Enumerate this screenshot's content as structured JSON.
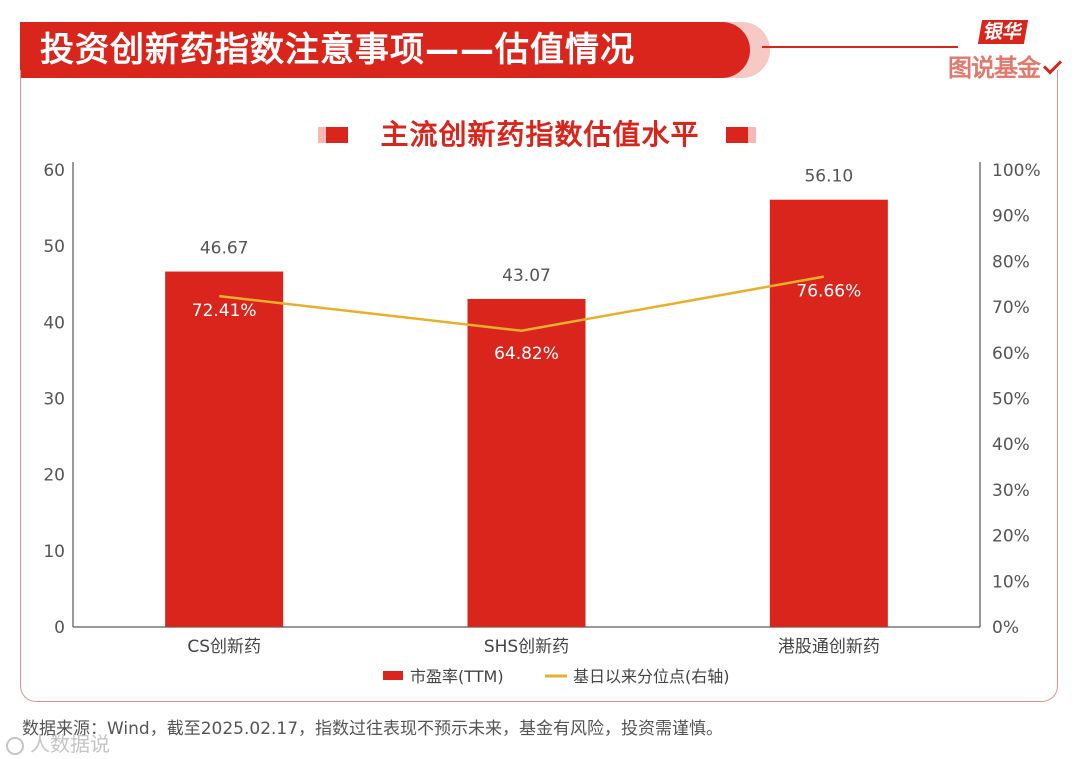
{
  "header": {
    "title": "投资创新药指数注意事项——估值情况",
    "logo_top": "银华",
    "logo_bottom": "图说基金"
  },
  "colors": {
    "brand": "#d9251c",
    "line": "#e8b02a"
  },
  "chart_data": {
    "type": "bar",
    "title": "主流创新药指数估值水平",
    "categories": [
      "CS创新药",
      "SHS创新药",
      "港股通创新药"
    ],
    "series": [
      {
        "name": "市盈率(TTM)",
        "type": "bar",
        "axis": "left",
        "values": [
          46.67,
          43.07,
          56.1
        ],
        "labels": [
          "46.67",
          "43.07",
          "56.10"
        ]
      },
      {
        "name": "基日以来分位点(右轴)",
        "type": "line",
        "axis": "right",
        "values": [
          72.41,
          64.82,
          76.66
        ],
        "labels": [
          "72.41%",
          "64.82%",
          "76.66%"
        ]
      }
    ],
    "y_left": {
      "min": 0,
      "max": 60,
      "ticks": [
        "0",
        "10",
        "20",
        "30",
        "40",
        "50",
        "60"
      ]
    },
    "y_right": {
      "min": 0,
      "max": 100,
      "ticks": [
        "0%",
        "10%",
        "20%",
        "30%",
        "40%",
        "50%",
        "60%",
        "70%",
        "80%",
        "90%",
        "100%"
      ]
    },
    "grid": false,
    "legend": "bottom-center"
  },
  "footer": {
    "source": "数据来源：Wind，截至2025.02.17，指数过往表现不预示未来，基金有风险，投资需谨慎。",
    "watermark": "人数据说"
  }
}
